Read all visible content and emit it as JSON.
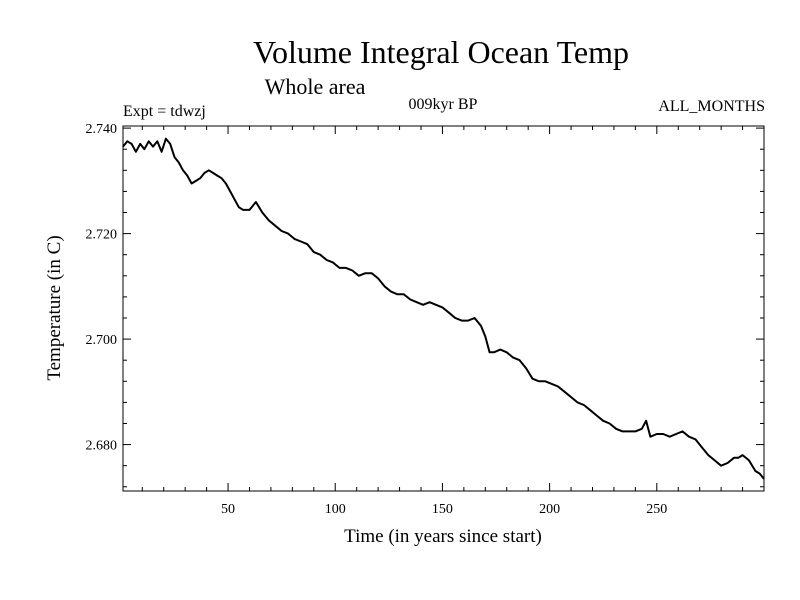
{
  "chart_data": {
    "type": "line",
    "title": "Volume Integral Ocean Temp",
    "subtitle": "Whole area",
    "experiment": "Expt = tdwzj",
    "period": "009kyr BP",
    "months": "ALL_MONTHS",
    "xlabel": "Time (in years since start)",
    "ylabel": "Temperature (in C)",
    "xlim": [
      1,
      300
    ],
    "ylim": [
      2.6712,
      2.7404
    ],
    "x_ticks": [
      50,
      100,
      150,
      200,
      250
    ],
    "x_tick_labels": [
      "50",
      "100",
      "150",
      "200",
      "250"
    ],
    "y_ticks": [
      2.68,
      2.7,
      2.72,
      2.74
    ],
    "y_tick_labels": [
      "2.680",
      "2.700",
      "2.720",
      "2.740"
    ],
    "grid": false,
    "line_color": "#000000",
    "series": [
      {
        "x": [
          1,
          3,
          5,
          7,
          9,
          11,
          13,
          15,
          17,
          19,
          21,
          23,
          25,
          27,
          29,
          31,
          33,
          35,
          37,
          39,
          41,
          43,
          45,
          47,
          49,
          51,
          53,
          55,
          57,
          60,
          63,
          66,
          69,
          72,
          75,
          78,
          81,
          84,
          87,
          90,
          93,
          96,
          99,
          102,
          105,
          108,
          111,
          114,
          117,
          120,
          123,
          126,
          129,
          132,
          135,
          138,
          141,
          144,
          147,
          150,
          153,
          156,
          159,
          162,
          165,
          168,
          170,
          172,
          174,
          177,
          180,
          183,
          186,
          189,
          192,
          195,
          198,
          201,
          204,
          207,
          210,
          213,
          216,
          219,
          222,
          225,
          228,
          231,
          234,
          237,
          240,
          243,
          245,
          247,
          250,
          253,
          256,
          259,
          262,
          265,
          268,
          271,
          274,
          277,
          280,
          283,
          286,
          288,
          290,
          293,
          296,
          298,
          300
        ],
        "values": [
          2.7365,
          2.7375,
          2.737,
          2.7355,
          2.737,
          2.736,
          2.7375,
          2.7365,
          2.7375,
          2.7355,
          2.738,
          2.737,
          2.7345,
          2.7335,
          2.732,
          2.731,
          2.7295,
          2.73,
          2.7305,
          2.7315,
          2.732,
          2.7315,
          2.731,
          2.7305,
          2.7295,
          2.728,
          2.7265,
          2.725,
          2.7245,
          2.7245,
          2.726,
          2.724,
          2.7225,
          2.7215,
          2.7205,
          2.72,
          2.719,
          2.7185,
          2.718,
          2.7165,
          2.716,
          2.715,
          2.7145,
          2.7135,
          2.7135,
          2.713,
          2.712,
          2.7125,
          2.7125,
          2.7115,
          2.71,
          2.709,
          2.7085,
          2.7085,
          2.7075,
          2.707,
          2.7065,
          2.707,
          2.7065,
          2.706,
          2.705,
          2.704,
          2.7035,
          2.7035,
          2.704,
          2.7025,
          2.7005,
          2.6975,
          2.6975,
          2.698,
          2.6975,
          2.6965,
          2.696,
          2.6945,
          2.6925,
          2.692,
          2.692,
          2.6915,
          2.691,
          2.69,
          2.689,
          2.688,
          2.6875,
          2.6865,
          2.6855,
          2.6845,
          2.684,
          2.683,
          2.6825,
          2.6825,
          2.6825,
          2.683,
          2.6845,
          2.6815,
          2.682,
          2.682,
          2.6815,
          2.682,
          2.6825,
          2.6815,
          2.681,
          2.6795,
          2.678,
          2.677,
          2.676,
          2.6765,
          2.6775,
          2.6775,
          2.678,
          2.677,
          2.675,
          2.6745,
          2.6735
        ]
      }
    ]
  }
}
